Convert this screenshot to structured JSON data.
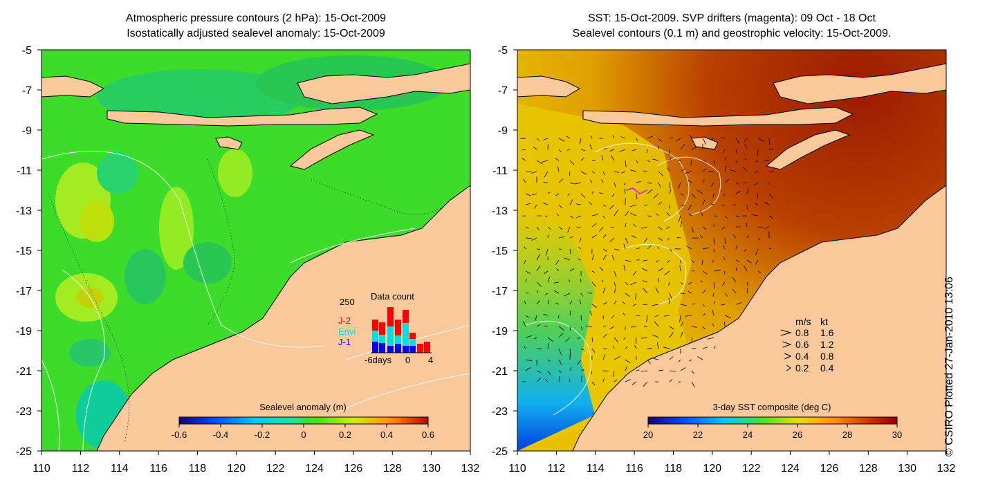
{
  "left_panel": {
    "title_line1": "Atmospheric pressure contours (2 hPa): 15-Oct-2009",
    "title_line2": "Isostatically adjusted sealevel anomaly: 15-Oct-2009",
    "colorbar": {
      "label": "Sealevel anomaly (m)",
      "ticks": [
        "-0.6",
        "-0.4",
        "-0.2",
        "0",
        "0.2",
        "0.4",
        "0.6"
      ],
      "range": [
        -0.6,
        0.6
      ]
    },
    "inset": {
      "title": "Data count",
      "ymax_label": "250",
      "series": [
        {
          "name": "J-2",
          "color": "#ff0000"
        },
        {
          "name": "Envi",
          "color": "#00e0e0"
        },
        {
          "name": "J-1",
          "color": "#0000ff"
        }
      ],
      "x_tick_left": "-6days",
      "x_tick_mid": "0",
      "x_tick_right": "4"
    }
  },
  "right_panel": {
    "title_line1": "SST: 15-Oct-2009. SVP drifters (magenta): 09 Oct - 18 Oct",
    "title_line2": "Sealevel contours (0.1 m) and geostrophic velocity: 15-Oct-2009.",
    "colorbar": {
      "label": "3-day SST composite (deg C)",
      "ticks": [
        "20",
        "22",
        "24",
        "26",
        "28",
        "30"
      ],
      "range": [
        20,
        30
      ]
    },
    "velocity_legend": {
      "header_ms": "m/s",
      "header_kt": "kt",
      "rows": [
        {
          "ms": "0.8",
          "kt": "1.6"
        },
        {
          "ms": "0.6",
          "kt": "1.2"
        },
        {
          "ms": "0.4",
          "kt": "0.8"
        },
        {
          "ms": "0.2",
          "kt": "0.4"
        }
      ]
    }
  },
  "axes": {
    "x_ticks": [
      "110",
      "112",
      "114",
      "116",
      "118",
      "120",
      "122",
      "124",
      "126",
      "128",
      "130",
      "132"
    ],
    "y_ticks": [
      "-5",
      "-7",
      "-9",
      "-11",
      "-13",
      "-15",
      "-17",
      "-19",
      "-21",
      "-23",
      "-25"
    ],
    "lon_range": [
      110,
      132
    ],
    "lat_range": [
      -25,
      -5
    ]
  },
  "credit": "© CSIRO Plotted 27-Jan-2010 13:06",
  "colors": {
    "land": "#f9c99b",
    "ocean_sla": "#3ddc2a",
    "ocean_sst_warm": "#a52a00",
    "ocean_sst_mid": "#e8b000",
    "ocean_sst_cool": "#0060ff"
  }
}
